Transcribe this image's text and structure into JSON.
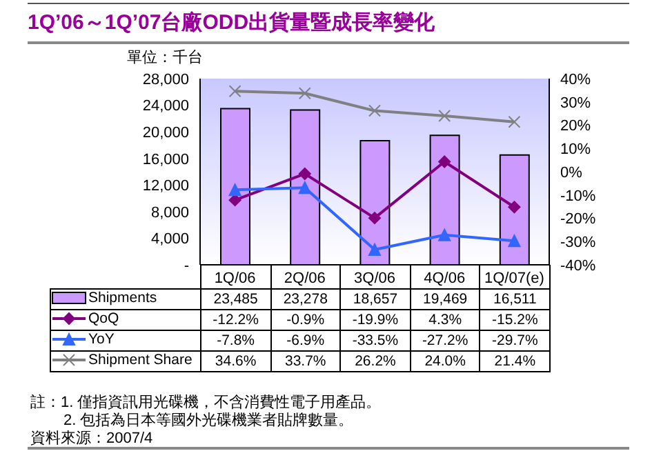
{
  "chart_data": {
    "type": "bar",
    "title": "1Q’06～1Q’07台廠ODD出貨量暨成長率變化",
    "ylabel": "單位：千台",
    "categories": [
      "1Q/06",
      "2Q/06",
      "3Q/06",
      "4Q/06",
      "1Q/07(e)"
    ],
    "series": [
      {
        "name": "Shipments",
        "color": "#cc99ff",
        "values": [
          23485,
          23278,
          18657,
          19469,
          16511
        ],
        "value_labels": [
          "23,485",
          "23,278",
          "18,657",
          "19,469",
          "16,511"
        ]
      },
      {
        "name": "QoQ",
        "type": "line",
        "axis": "y2",
        "marker": "diamond",
        "color": "#800080",
        "values": [
          -12.2,
          -0.9,
          -19.9,
          4.3,
          -15.2
        ],
        "value_labels": [
          "-12.2%",
          "-0.9%",
          "-19.9%",
          "4.3%",
          "-15.2%"
        ]
      },
      {
        "name": "YoY",
        "type": "line",
        "axis": "y2",
        "marker": "triangle",
        "color": "#3366ff",
        "values": [
          -7.8,
          -6.9,
          -33.5,
          -27.2,
          -29.7
        ],
        "value_labels": [
          "-7.8%",
          "-6.9%",
          "-33.5%",
          "-27.2%",
          "-29.7%"
        ]
      },
      {
        "name": "Shipment Share",
        "type": "line",
        "axis": "y2",
        "marker": "cross",
        "color": "#808080",
        "values": [
          34.6,
          33.7,
          26.2,
          24.0,
          21.4
        ],
        "value_labels": [
          "34.6%",
          "33.7%",
          "26.2%",
          "24.0%",
          "21.4%"
        ]
      }
    ],
    "ylim": [
      0,
      28000
    ],
    "yticks": [
      {
        "value": 0,
        "label": "-"
      },
      {
        "value": 4000,
        "label": "4,000"
      },
      {
        "value": 8000,
        "label": "8,000"
      },
      {
        "value": 12000,
        "label": "12,000"
      },
      {
        "value": 16000,
        "label": "16,000"
      },
      {
        "value": 20000,
        "label": "20,000"
      },
      {
        "value": 24000,
        "label": "24,000"
      },
      {
        "value": 28000,
        "label": "28,000"
      }
    ],
    "y2lim": [
      -40,
      40
    ],
    "y2ticks": [
      {
        "value": -40,
        "label": "-40%"
      },
      {
        "value": -30,
        "label": "-30%"
      },
      {
        "value": -20,
        "label": "-20%"
      },
      {
        "value": -10,
        "label": "-10%"
      },
      {
        "value": 0,
        "label": "0%"
      },
      {
        "value": 10,
        "label": "10%"
      },
      {
        "value": 20,
        "label": "20%"
      },
      {
        "value": 30,
        "label": "30%"
      },
      {
        "value": 40,
        "label": "40%"
      }
    ],
    "legend": "bottom",
    "annotations": [
      "註：1. 僅指資訊用光碟機，不含消費性電子用產品。",
      "2. 包括為日本等國外光碟機業者貼牌數量。",
      "資料來源：2007/4"
    ]
  }
}
